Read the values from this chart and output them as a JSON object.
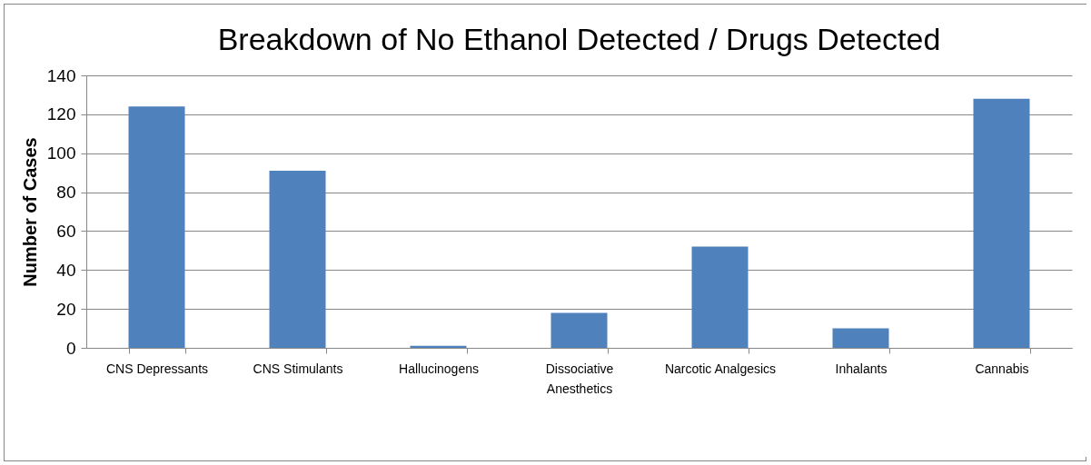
{
  "chart_data": {
    "type": "bar",
    "title": "Breakdown of No Ethanol Detected / Drugs Detected",
    "ylabel": "Number of Cases",
    "categories": [
      "CNS Depressants",
      "CNS Stimulants",
      "Hallucinogens",
      "Dissociative Anesthetics",
      "Narcotic Analgesics",
      "Inhalants",
      "Cannabis"
    ],
    "values": [
      124,
      91,
      1,
      18,
      52,
      10,
      128
    ],
    "color": "#4f81bd",
    "ylim": [
      0,
      140
    ],
    "yticks": [
      0,
      20,
      40,
      60,
      80,
      100,
      120,
      140
    ],
    "grid": "y"
  }
}
